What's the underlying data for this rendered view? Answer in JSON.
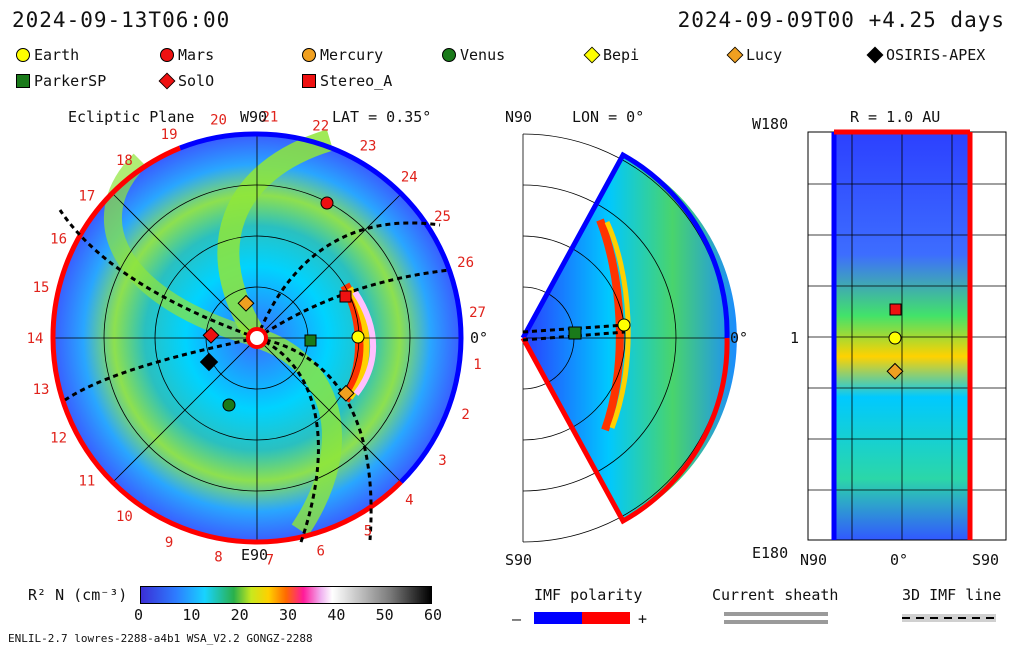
{
  "header": {
    "left_time": "2024-09-13T06:00",
    "right_time": "2024-09-09T00 +4.25 days"
  },
  "legend_items": [
    {
      "name": "Earth",
      "shape": "circle",
      "color": "#ffff00"
    },
    {
      "name": "Mars",
      "shape": "circle",
      "color": "#ee1111"
    },
    {
      "name": "Mercury",
      "shape": "circle",
      "color": "#f0a020"
    },
    {
      "name": "Venus",
      "shape": "circle",
      "color": "#1a7a1a"
    },
    {
      "name": "Bepi",
      "shape": "diamond",
      "color": "#ffff00"
    },
    {
      "name": "Lucy",
      "shape": "diamond",
      "color": "#f0a020"
    },
    {
      "name": "OSIRIS-APEX",
      "shape": "diamond",
      "color": "#000000"
    },
    {
      "name": "ParkerSP",
      "shape": "square",
      "color": "#1a7a1a"
    },
    {
      "name": "SolO",
      "shape": "diamond",
      "color": "#ee1111"
    },
    {
      "name": "Stereo_A",
      "shape": "square",
      "color": "#ee1111"
    }
  ],
  "ecliptic": {
    "title": "Ecliptic Plane",
    "top_label": "W90",
    "lat": "LAT = 0.35°",
    "right_label": "0°",
    "bottom_label": "E90",
    "ticks": [
      "20",
      "21",
      "22",
      "23",
      "24",
      "25",
      "26",
      "27",
      "1",
      "2",
      "3",
      "4",
      "5",
      "6",
      "7",
      "8",
      "9",
      "10",
      "11",
      "12",
      "13",
      "14",
      "15",
      "16",
      "17",
      "18",
      "19"
    ]
  },
  "meridional": {
    "lon": "LON = 0°",
    "top": "N90",
    "bottom": "S90",
    "right": "0°"
  },
  "radial": {
    "title": "R = 1.0 AU",
    "top_left": "W180",
    "bottom_left": "E180",
    "mid_left": "1",
    "x_left": "N90",
    "x_mid": "0°",
    "x_right": "S90"
  },
  "colorbar": {
    "label": "R² N (cm⁻³)",
    "ticks": [
      "0",
      "10",
      "20",
      "30",
      "40",
      "50",
      "60"
    ]
  },
  "imf": {
    "label": "IMF polarity",
    "minus": "–",
    "plus": "+",
    "colors": [
      "#0000ff",
      "#ff0000"
    ]
  },
  "sheath": {
    "label": "Current sheath"
  },
  "imfline": {
    "label": "3D IMF line"
  },
  "footer": {
    "text": "ENLIL-2.7 lowres-2288-a4b1 WSA_V2.2 GONGZ-2288"
  }
}
